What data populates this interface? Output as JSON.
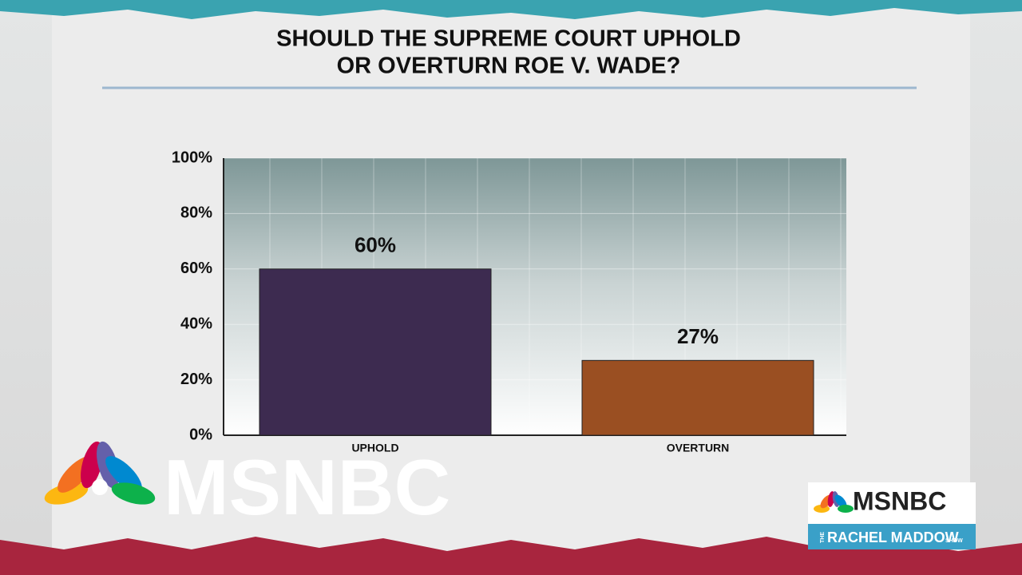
{
  "chart_data": {
    "type": "bar",
    "title": [
      "SHOULD THE SUPREME COURT UPHOLD",
      "OR OVERTURN ROE V. WADE?"
    ],
    "categories": [
      "UPHOLD",
      "OVERTURN"
    ],
    "values": [
      60,
      27
    ],
    "value_labels": [
      "60%",
      "27%"
    ],
    "colors": [
      "#3d2b50",
      "#9a4f22"
    ],
    "ylim": [
      0,
      100
    ],
    "yticks": [
      {
        "value": 0,
        "label": "0%"
      },
      {
        "value": 20,
        "label": "20%"
      },
      {
        "value": 40,
        "label": "40%"
      },
      {
        "value": 60,
        "label": "60%"
      },
      {
        "value": 80,
        "label": "80%"
      },
      {
        "value": 100,
        "label": "100%"
      }
    ],
    "grid": true
  },
  "branding": {
    "logo": "MSNBC",
    "show_logo": "MSNBC",
    "show_prefix": "THE",
    "show_name": "RACHEL MADDOW",
    "show_suffix": "SHOW"
  }
}
